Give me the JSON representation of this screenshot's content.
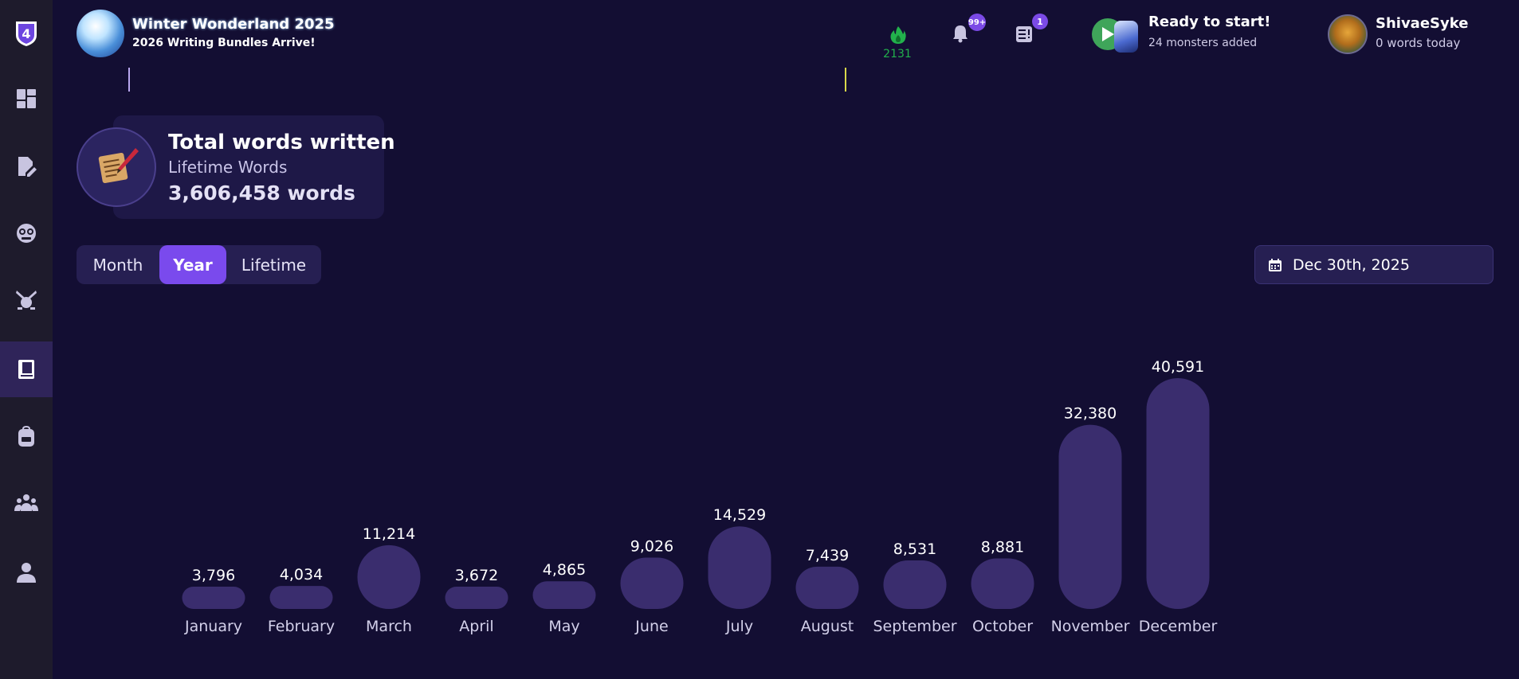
{
  "banner": {
    "title": "Winter Wonderland 2025",
    "subtitle": "2026 Writing Bundles Arrive!"
  },
  "topbar": {
    "streak_count": "2131",
    "notifications_badge": "99+",
    "tasks_badge": "1",
    "ready_title": "Ready to start!",
    "ready_sub": "24 monsters added",
    "user_name": "ShivaeSyke",
    "user_sub": "0 words today"
  },
  "sidebar": {
    "logo_label": "4",
    "items": [
      {
        "icon": "dashboard-icon",
        "active": false
      },
      {
        "icon": "edit-document-icon",
        "active": false
      },
      {
        "icon": "monster-face-icon",
        "active": false
      },
      {
        "icon": "battle-crossed-swords-icon",
        "active": false
      },
      {
        "icon": "book-icon",
        "active": true
      },
      {
        "icon": "backpack-icon",
        "active": false
      },
      {
        "icon": "community-icon",
        "active": false
      },
      {
        "icon": "profile-icon",
        "active": false
      }
    ]
  },
  "stats_card": {
    "title": "Total words written",
    "subtitle": "Lifetime Words",
    "total": "3,606,458 words"
  },
  "tabs": {
    "month": "Month",
    "year": "Year",
    "lifetime": "Lifetime",
    "active": "year"
  },
  "date_picker": {
    "value": "Dec 30th, 2025"
  },
  "colors": {
    "background": "#130e33",
    "accent": "#7a4aed",
    "bar": "#3a2d6e",
    "streak": "#22b14c"
  },
  "chart_data": {
    "type": "bar",
    "categories": [
      "January",
      "February",
      "March",
      "April",
      "May",
      "June",
      "July",
      "August",
      "September",
      "October",
      "November",
      "December"
    ],
    "values": [
      3796,
      4034,
      11214,
      3672,
      4865,
      9026,
      14529,
      7439,
      8531,
      8881,
      32380,
      40591
    ],
    "value_labels": [
      "3,796",
      "4,034",
      "11,214",
      "3,672",
      "4,865",
      "9,026",
      "14,529",
      "7,439",
      "8,531",
      "8,881",
      "32,380",
      "40,591"
    ],
    "title": "",
    "xlabel": "",
    "ylabel": "",
    "grid": false
  }
}
